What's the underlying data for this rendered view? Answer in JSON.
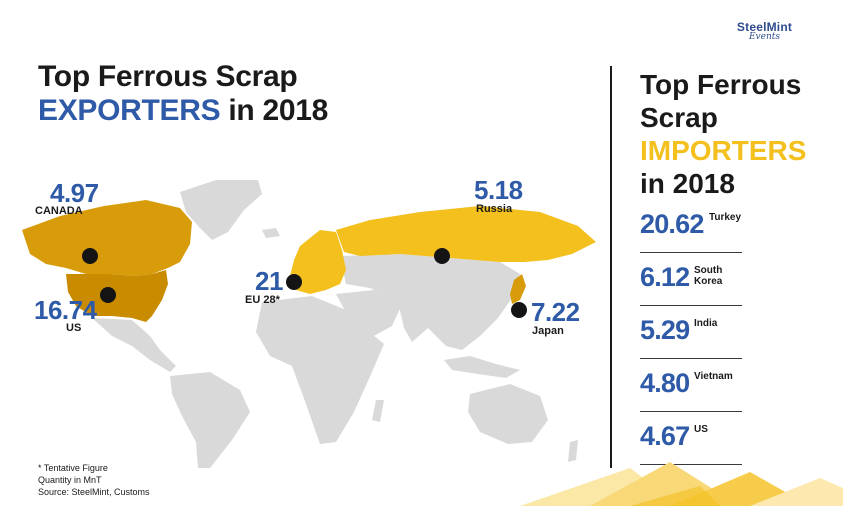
{
  "logo": {
    "main": "SteelMint",
    "sub": "Events"
  },
  "left_title": {
    "line1": "Top Ferrous Scrap",
    "highlight": "EXPORTERS",
    "rest": " in 2018"
  },
  "right_title": {
    "line1": "Top Ferrous",
    "line2": "Scrap",
    "highlight": "IMPORTERS",
    "line4": "in 2018"
  },
  "notes": [
    "* Tentative Figure",
    "Quantity in MnT",
    "Source: SteelMint, Customs"
  ],
  "colors": {
    "blue": "#2e5aa7",
    "yellow": "#f3c01e",
    "dark_yellow": "#d89c0b",
    "land": "#d9d9d9"
  },
  "chart_data": [
    {
      "type": "map",
      "title": "Top Ferrous Scrap EXPORTERS in 2018",
      "unit": "MnT",
      "exporters": [
        {
          "country": "CANADA",
          "value": "4.97"
        },
        {
          "country": "US",
          "value": "16.74"
        },
        {
          "country": "EU 28*",
          "value": "21"
        },
        {
          "country": "Russia",
          "value": "5.18"
        },
        {
          "country": "Japan",
          "value": "7.22"
        }
      ]
    },
    {
      "type": "table",
      "title": "Top Ferrous Scrap IMPORTERS in 2018",
      "unit": "MnT",
      "importers": [
        {
          "country": "Turkey",
          "value": "20.62"
        },
        {
          "country": "South Korea",
          "value": "6.12"
        },
        {
          "country": "India",
          "value": "5.29"
        },
        {
          "country": "Vietnam",
          "value": "4.80"
        },
        {
          "country": "US",
          "value": "4.67"
        }
      ]
    }
  ]
}
